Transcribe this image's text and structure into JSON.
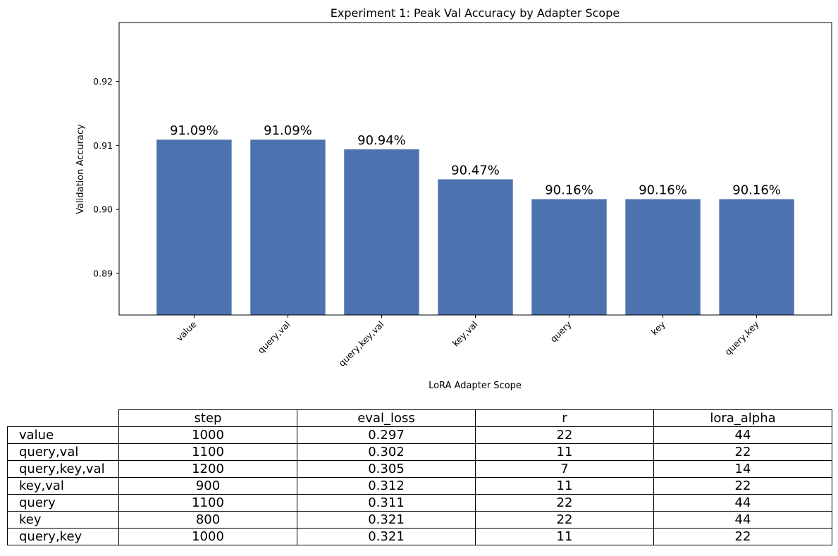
{
  "chart_data": {
    "type": "bar",
    "title": "Experiment 1: Peak Val Accuracy by Adapter Scope",
    "xlabel": "LoRA Adapter Scope",
    "ylabel": "Validation Accuracy",
    "categories": [
      "value",
      "query,val",
      "query,key,val",
      "key,val",
      "query",
      "key",
      "query,key"
    ],
    "values": [
      0.9109,
      0.9109,
      0.9094,
      0.9047,
      0.9016,
      0.9016,
      0.9016
    ],
    "data_labels": [
      "91.09%",
      "91.09%",
      "90.94%",
      "90.47%",
      "90.16%",
      "90.16%",
      "90.16%"
    ],
    "ylim": [
      0.8835,
      0.9292
    ],
    "yticks": [
      0.89,
      0.9,
      0.91,
      0.92
    ],
    "ytick_labels": [
      "0.89",
      "0.90",
      "0.91",
      "0.92"
    ],
    "bar_color": "#4c72b0",
    "grid": false,
    "legend": "none"
  },
  "table": {
    "columns": [
      "step",
      "eval_loss",
      "r",
      "lora_alpha"
    ],
    "rows": [
      {
        "label": "value",
        "cells": [
          "1000",
          "0.297",
          "22",
          "44"
        ]
      },
      {
        "label": "query,val",
        "cells": [
          "1100",
          "0.302",
          "11",
          "22"
        ]
      },
      {
        "label": "query,key,val",
        "cells": [
          "1200",
          "0.305",
          "7",
          "14"
        ]
      },
      {
        "label": "key,val",
        "cells": [
          "900",
          "0.312",
          "11",
          "22"
        ]
      },
      {
        "label": "query",
        "cells": [
          "1100",
          "0.311",
          "22",
          "44"
        ]
      },
      {
        "label": "key",
        "cells": [
          "800",
          "0.321",
          "22",
          "44"
        ]
      },
      {
        "label": "query,key",
        "cells": [
          "1000",
          "0.321",
          "11",
          "22"
        ]
      }
    ]
  }
}
